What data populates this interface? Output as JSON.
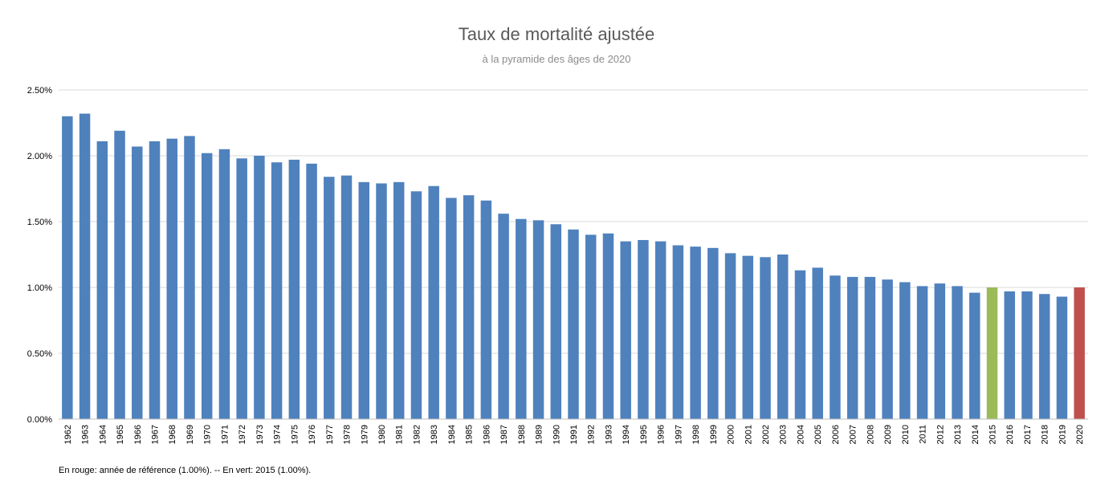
{
  "chart_data": {
    "type": "bar",
    "title": "Taux de mortalité ajustée",
    "subtitle": "à la pyramide des âges de 2020",
    "xlabel": "",
    "ylabel": "",
    "ylim": [
      0,
      0.025
    ],
    "y_ticks": [
      "0.00%",
      "0.50%",
      "1.00%",
      "1.50%",
      "2.00%",
      "2.50%"
    ],
    "y_tick_values": [
      0,
      0.005,
      0.01,
      0.015,
      0.02,
      0.025
    ],
    "grid": true,
    "categories": [
      "1962",
      "1963",
      "1964",
      "1965",
      "1966",
      "1967",
      "1968",
      "1969",
      "1970",
      "1971",
      "1972",
      "1973",
      "1974",
      "1975",
      "1976",
      "1977",
      "1978",
      "1979",
      "1980",
      "1981",
      "1982",
      "1983",
      "1984",
      "1985",
      "1986",
      "1987",
      "1988",
      "1989",
      "1990",
      "1991",
      "1992",
      "1993",
      "1994",
      "1995",
      "1996",
      "1997",
      "1998",
      "1999",
      "2000",
      "2001",
      "2002",
      "2003",
      "2004",
      "2005",
      "2006",
      "2007",
      "2008",
      "2009",
      "2010",
      "2011",
      "2012",
      "2013",
      "2014",
      "2015",
      "2016",
      "2017",
      "2018",
      "2019",
      "2020"
    ],
    "values": [
      0.023,
      0.0232,
      0.0211,
      0.0219,
      0.0207,
      0.0211,
      0.0213,
      0.0215,
      0.0202,
      0.0205,
      0.0198,
      0.02,
      0.0195,
      0.0197,
      0.0194,
      0.0184,
      0.0185,
      0.018,
      0.0179,
      0.018,
      0.0173,
      0.0177,
      0.0168,
      0.017,
      0.0166,
      0.0156,
      0.0152,
      0.0151,
      0.0148,
      0.0144,
      0.014,
      0.0141,
      0.0135,
      0.0136,
      0.0135,
      0.0132,
      0.0131,
      0.013,
      0.0126,
      0.0124,
      0.0123,
      0.0125,
      0.0113,
      0.0115,
      0.0109,
      0.0108,
      0.0108,
      0.0106,
      0.0104,
      0.0101,
      0.0103,
      0.0101,
      0.0096,
      0.01,
      0.0097,
      0.0097,
      0.0095,
      0.0093,
      0.01
    ],
    "colors": {
      "default": "#4f81bd",
      "highlight_green": "#9bbb59",
      "highlight_red": "#c0504d",
      "grid": "#d9d9d9",
      "axis": "#bfbfbf"
    },
    "highlight": {
      "2015": "highlight_green",
      "2020": "highlight_red"
    }
  },
  "footnote": "En rouge: année de référence (1.00%). -- En vert: 2015 (1.00%)."
}
